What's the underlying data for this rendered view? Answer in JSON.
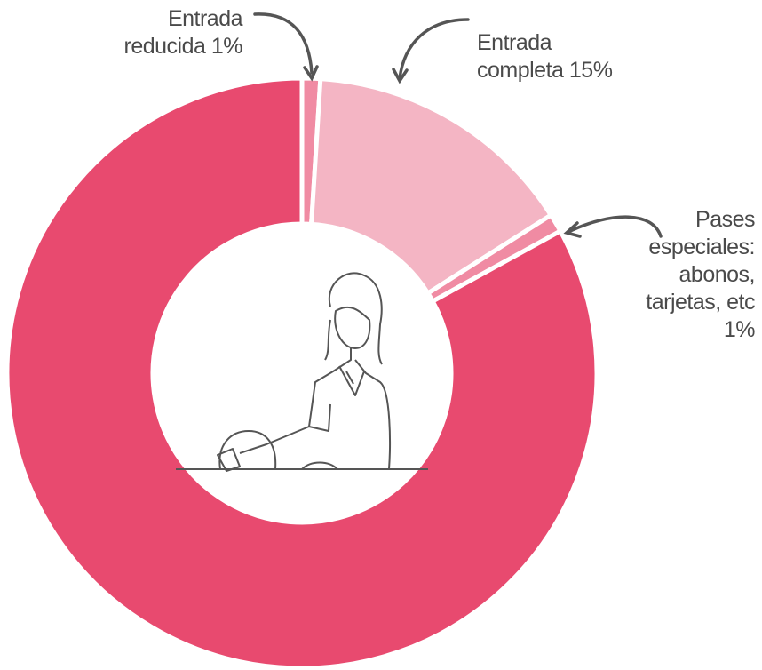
{
  "chart_data": {
    "type": "donut",
    "categories": [
      "Entrada reducida",
      "Entrada completa",
      "Pases especiales: abonos, tarjetas, etc",
      null
    ],
    "values": [
      1,
      15,
      1,
      83
    ],
    "value_labels": [
      "1%",
      "15%",
      "1%",
      null
    ],
    "colors": [
      "#f08ba3",
      "#f4b5c4",
      "#f08ba3",
      "#e84a6f"
    ]
  }
}
